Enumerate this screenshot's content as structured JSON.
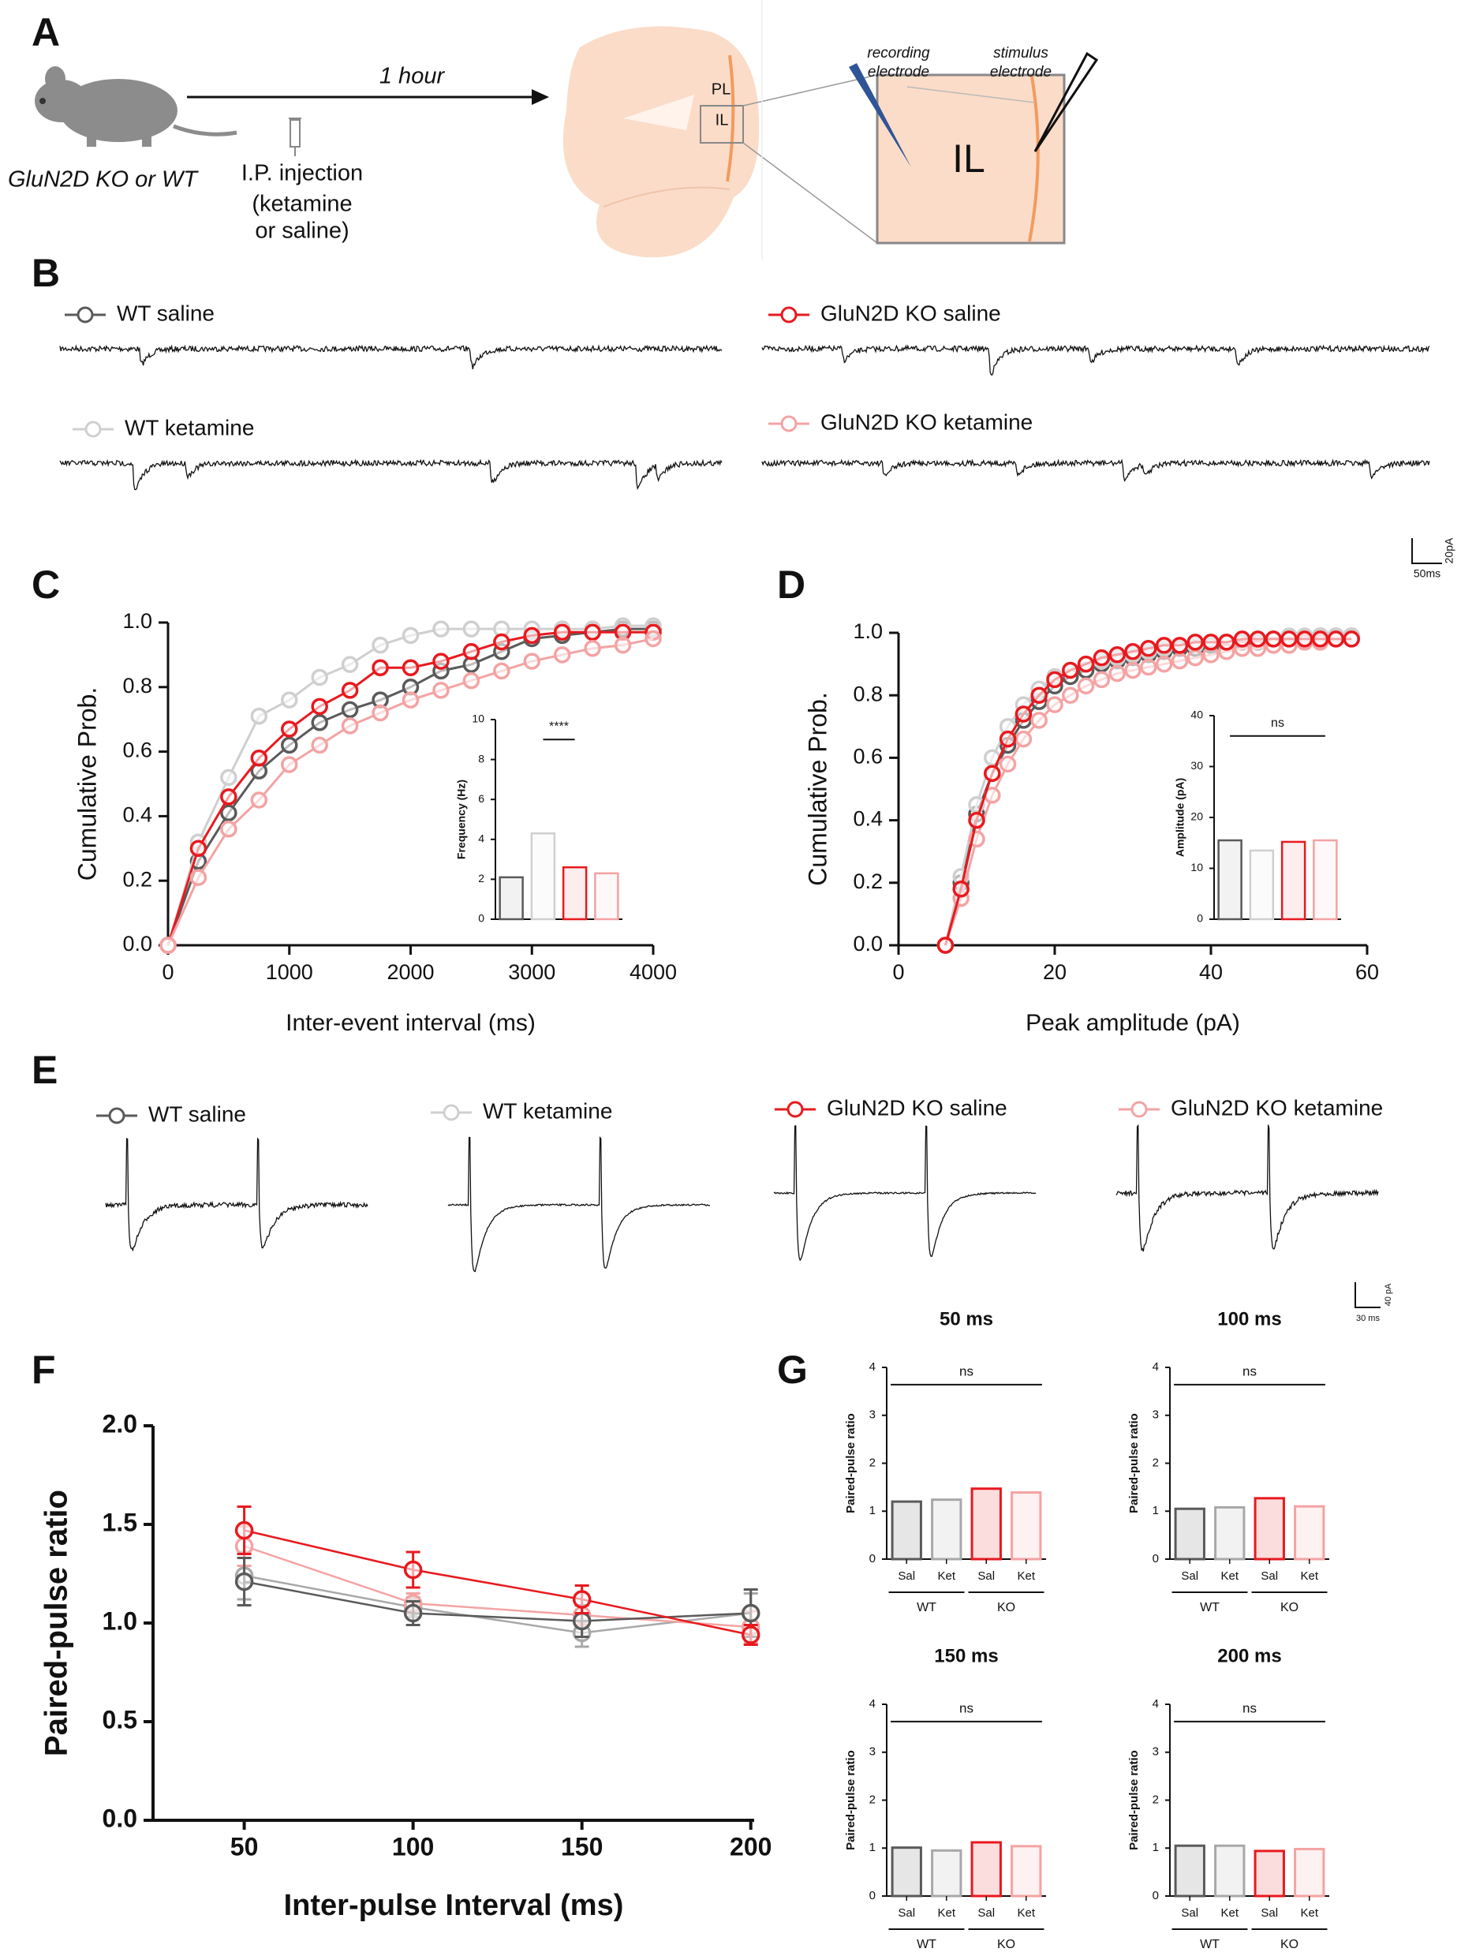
{
  "panel_labels": [
    "A",
    "B",
    "C",
    "D",
    "E",
    "F",
    "G"
  ],
  "diagram": {
    "animal": "GluN2D KO or WT",
    "interval": "1 hour",
    "injection_lines": [
      "I.P. injection",
      "(ketamine",
      "or saline)"
    ],
    "brain_regions": [
      "PL",
      "IL"
    ],
    "inset_region": "IL",
    "recording_electrode": [
      "recording",
      "electrode"
    ],
    "stimulus_electrode": [
      "stimulus",
      "electrode"
    ]
  },
  "traces_b": {
    "legend": [
      "WT saline",
      "WT ketamine",
      "GluN2D KO saline",
      "GluN2D KO ketamine"
    ],
    "scale_y": "20pA",
    "scale_x": "50ms"
  },
  "traces_e": {
    "legend": [
      "WT saline",
      "WT ketamine",
      "GluN2D KO saline",
      "GluN2D KO ketamine"
    ],
    "scale_y": "40 pA",
    "scale_x": "30 ms"
  },
  "chart_data": [
    {
      "type": "line",
      "x_label": "Inter-event interval (ms)",
      "y_label": "Cumulative Prob.",
      "x": [
        0,
        250,
        500,
        750,
        1000,
        1250,
        1500,
        1750,
        2000,
        2250,
        2500,
        2750,
        3000,
        3250,
        3500,
        3750,
        4000
      ],
      "xlim": [
        0,
        4000
      ],
      "xticks": [
        0,
        1000,
        2000,
        3000,
        4000
      ],
      "ylim": [
        0,
        1
      ],
      "yticks": [
        {
          "value": 0,
          "label": "0.0"
        },
        0.2,
        0.4,
        0.6,
        0.8,
        {
          "value": 1,
          "label": "1.0"
        }
      ],
      "series": [
        {
          "name": "WT saline",
          "color": "#5a5a5a",
          "values": [
            0,
            0.26,
            0.41,
            0.54,
            0.62,
            0.69,
            0.73,
            0.76,
            0.8,
            0.85,
            0.87,
            0.91,
            0.95,
            0.96,
            0.97,
            0.98,
            0.98
          ]
        },
        {
          "name": "WT ketamine",
          "color": "#cfcfcf",
          "values": [
            0,
            0.32,
            0.52,
            0.71,
            0.76,
            0.83,
            0.87,
            0.93,
            0.96,
            0.98,
            0.98,
            0.98,
            0.98,
            0.98,
            0.98,
            0.99,
            0.99
          ]
        },
        {
          "name": "GluN2D KO saline",
          "color": "#e8191e",
          "values": [
            0,
            0.3,
            0.46,
            0.58,
            0.67,
            0.74,
            0.79,
            0.86,
            0.86,
            0.88,
            0.91,
            0.94,
            0.96,
            0.97,
            0.97,
            0.97,
            0.97
          ]
        },
        {
          "name": "GluN2D KO ketamine",
          "color": "#f4a3a3",
          "values": [
            0,
            0.21,
            0.36,
            0.45,
            0.56,
            0.62,
            0.68,
            0.72,
            0.76,
            0.79,
            0.82,
            0.85,
            0.88,
            0.9,
            0.92,
            0.93,
            0.95
          ]
        }
      ]
    },
    {
      "type": "bar",
      "y_label": "Frequency (Hz)",
      "annotation": "****",
      "categories": [
        null,
        null,
        null,
        null
      ],
      "values": [
        2.1,
        4.3,
        2.6,
        2.3
      ],
      "colors": [
        "#5a5a5a",
        "#cfcfcf",
        "#e8191e",
        "#f4a3a3"
      ],
      "ylim": [
        0,
        10
      ],
      "yticks": [
        0,
        2,
        4,
        6,
        8,
        10
      ]
    },
    {
      "type": "line",
      "x_label": "Peak amplitude (pA)",
      "y_label": "Cumulative Prob.",
      "x": [
        6,
        8,
        10,
        12,
        14,
        16,
        18,
        20,
        22,
        24,
        26,
        28,
        30,
        32,
        34,
        36,
        38,
        40,
        42,
        44,
        46,
        48,
        50,
        52,
        54,
        56,
        58
      ],
      "xlim": [
        0,
        60
      ],
      "xticks": [
        0,
        20,
        40,
        60
      ],
      "ylim": [
        0,
        1
      ],
      "yticks": [
        {
          "value": 0,
          "label": "0.0"
        },
        0.2,
        0.4,
        0.6,
        0.8,
        {
          "value": 1,
          "label": "1.0"
        }
      ],
      "series": [
        {
          "name": "WT saline",
          "color": "#5a5a5a",
          "values": [
            0,
            0.2,
            0.42,
            0.55,
            0.64,
            0.72,
            0.78,
            0.83,
            0.86,
            0.88,
            0.9,
            0.91,
            0.92,
            0.93,
            0.94,
            0.95,
            0.95,
            0.96,
            0.97,
            0.97,
            0.97,
            0.98,
            0.98,
            0.98,
            0.99,
            0.99,
            0.99
          ]
        },
        {
          "name": "WT ketamine",
          "color": "#cfcfcf",
          "values": [
            0,
            0.22,
            0.45,
            0.6,
            0.7,
            0.77,
            0.82,
            0.86,
            0.88,
            0.9,
            0.91,
            0.92,
            0.93,
            0.94,
            0.95,
            0.96,
            0.96,
            0.97,
            0.97,
            0.98,
            0.98,
            0.98,
            0.99,
            0.99,
            0.99,
            0.99,
            0.99
          ]
        },
        {
          "name": "GluN2D KO ketamine",
          "color": "#f4a3a3",
          "values": [
            0,
            0.15,
            0.34,
            0.48,
            0.58,
            0.66,
            0.72,
            0.77,
            0.8,
            0.83,
            0.85,
            0.87,
            0.88,
            0.89,
            0.9,
            0.91,
            0.92,
            0.93,
            0.94,
            0.95,
            0.95,
            0.96,
            0.96,
            0.97,
            0.97,
            0.98,
            0.98
          ]
        },
        {
          "name": "GluN2D KO saline",
          "color": "#e8191e",
          "values": [
            0,
            0.18,
            0.4,
            0.55,
            0.66,
            0.74,
            0.8,
            0.85,
            0.88,
            0.9,
            0.92,
            0.93,
            0.94,
            0.95,
            0.96,
            0.96,
            0.97,
            0.97,
            0.97,
            0.98,
            0.98,
            0.98,
            0.98,
            0.98,
            0.98,
            0.98,
            0.98
          ]
        }
      ]
    },
    {
      "type": "bar",
      "y_label": "Amplitude (pA)",
      "annotation": "ns",
      "categories": [
        null,
        null,
        null,
        null
      ],
      "values": [
        15.5,
        13.5,
        15.2,
        15.5
      ],
      "colors": [
        "#5a5a5a",
        "#cfcfcf",
        "#e8191e",
        "#f4a3a3"
      ],
      "ylim": [
        0,
        40
      ],
      "yticks": [
        0,
        10,
        20,
        30,
        40
      ]
    },
    {
      "type": "line",
      "x_label": "Inter-pulse Interval (ms)",
      "y_label": "Paired-pulse ratio",
      "x": [
        50,
        100,
        150,
        200
      ],
      "xlim": [
        23,
        201
      ],
      "xticks": [
        50,
        100,
        150,
        200
      ],
      "ylim": [
        0,
        2
      ],
      "yticks": [
        {
          "value": 0,
          "label": "0.0"
        },
        0.5,
        {
          "value": 1,
          "label": "1.0"
        },
        1.5,
        {
          "value": 2,
          "label": "2.0"
        }
      ],
      "series": [
        {
          "name": "WT ketamine",
          "color": "#a8a8a8",
          "values": [
            1.24,
            1.08,
            0.95,
            1.05
          ],
          "errors": [
            0.12,
            0.05,
            0.07,
            0.1
          ]
        },
        {
          "name": "GluN2D KO ketamine",
          "color": "#f4a3a3",
          "values": [
            1.39,
            1.1,
            1.04,
            0.98
          ],
          "errors": [
            0.1,
            0.05,
            0.05,
            0.08
          ]
        },
        {
          "name": "WT saline",
          "color": "#5a5a5a",
          "values": [
            1.21,
            1.05,
            1.01,
            1.05
          ],
          "errors": [
            0.12,
            0.06,
            0.08,
            0.12
          ]
        },
        {
          "name": "GluN2D KO saline",
          "color": "#e8191e",
          "values": [
            1.47,
            1.27,
            1.12,
            0.94
          ],
          "errors": [
            0.12,
            0.09,
            0.07,
            0.05
          ]
        }
      ]
    },
    {
      "type": "bar",
      "title": "50 ms",
      "y_label": "Paired-pulse ratio",
      "annotation": "ns",
      "categories": [
        "Sal",
        "Ket",
        "Sal",
        "Ket"
      ],
      "groups": [
        "WT",
        "KO"
      ],
      "values": [
        1.2,
        1.24,
        1.47,
        1.39
      ],
      "colors": [
        "#5a5a5a",
        "#a8a8a8",
        "#e8191e",
        "#f4a3a3"
      ],
      "ylim": [
        0,
        4
      ],
      "yticks": [
        0,
        1,
        2,
        3,
        4
      ]
    },
    {
      "type": "bar",
      "title": "100 ms",
      "y_label": "Paired-pulse ratio",
      "annotation": "ns",
      "categories": [
        "Sal",
        "Ket",
        "Sal",
        "Ket"
      ],
      "groups": [
        "WT",
        "KO"
      ],
      "values": [
        1.05,
        1.08,
        1.27,
        1.1
      ],
      "colors": [
        "#5a5a5a",
        "#a8a8a8",
        "#e8191e",
        "#f4a3a3"
      ],
      "ylim": [
        0,
        4
      ],
      "yticks": [
        0,
        1,
        2,
        3,
        4
      ]
    },
    {
      "type": "bar",
      "title": "150 ms",
      "y_label": "Paired-pulse ratio",
      "annotation": "ns",
      "categories": [
        "Sal",
        "Ket",
        "Sal",
        "Ket"
      ],
      "groups": [
        "WT",
        "KO"
      ],
      "values": [
        1.01,
        0.95,
        1.12,
        1.04
      ],
      "colors": [
        "#5a5a5a",
        "#a8a8a8",
        "#e8191e",
        "#f4a3a3"
      ],
      "ylim": [
        0,
        4
      ],
      "yticks": [
        0,
        1,
        2,
        3,
        4
      ]
    },
    {
      "type": "bar",
      "title": "200 ms",
      "y_label": "Paired-pulse ratio",
      "annotation": "ns",
      "categories": [
        "Sal",
        "Ket",
        "Sal",
        "Ket"
      ],
      "groups": [
        "WT",
        "KO"
      ],
      "values": [
        1.05,
        1.05,
        0.94,
        0.98
      ],
      "colors": [
        "#5a5a5a",
        "#a8a8a8",
        "#e8191e",
        "#f4a3a3"
      ],
      "ylim": [
        0,
        4
      ],
      "yticks": [
        0,
        1,
        2,
        3,
        4
      ]
    }
  ]
}
